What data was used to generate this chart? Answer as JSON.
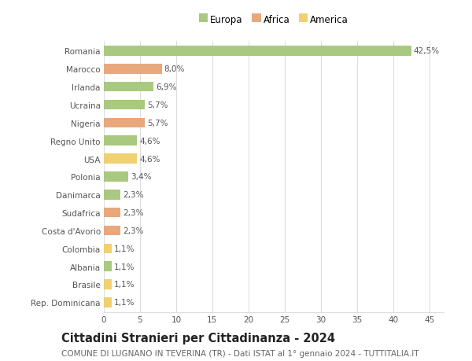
{
  "categories": [
    "Romania",
    "Marocco",
    "Irlanda",
    "Ucraina",
    "Nigeria",
    "Regno Unito",
    "USA",
    "Polonia",
    "Danimarca",
    "Sudafrica",
    "Costa d'Avorio",
    "Colombia",
    "Albania",
    "Brasile",
    "Rep. Dominicana"
  ],
  "values": [
    42.5,
    8.0,
    6.9,
    5.7,
    5.7,
    4.6,
    4.6,
    3.4,
    2.3,
    2.3,
    2.3,
    1.1,
    1.1,
    1.1,
    1.1
  ],
  "labels": [
    "42,5%",
    "8,0%",
    "6,9%",
    "5,7%",
    "5,7%",
    "4,6%",
    "4,6%",
    "3,4%",
    "2,3%",
    "2,3%",
    "2,3%",
    "1,1%",
    "1,1%",
    "1,1%",
    "1,1%"
  ],
  "continent": [
    "Europa",
    "Africa",
    "Europa",
    "Europa",
    "Africa",
    "Europa",
    "America",
    "Europa",
    "Europa",
    "Africa",
    "Africa",
    "America",
    "Europa",
    "America",
    "America"
  ],
  "colors": {
    "Europa": "#a8c97f",
    "Africa": "#e8a87c",
    "America": "#f0d070"
  },
  "title": "Cittadini Stranieri per Cittadinanza - 2024",
  "subtitle": "COMUNE DI LUGNANO IN TEVERINA (TR) - Dati ISTAT al 1° gennaio 2024 - TUTTITALIA.IT",
  "xlim": [
    0,
    47
  ],
  "xticks": [
    0,
    5,
    10,
    15,
    20,
    25,
    30,
    35,
    40,
    45
  ],
  "background_color": "#ffffff",
  "grid_color": "#dddddd",
  "bar_height": 0.55,
  "label_fontsize": 7.5,
  "title_fontsize": 10.5,
  "subtitle_fontsize": 7.5,
  "ytick_fontsize": 7.5,
  "xtick_fontsize": 7.5,
  "legend_fontsize": 8.5
}
